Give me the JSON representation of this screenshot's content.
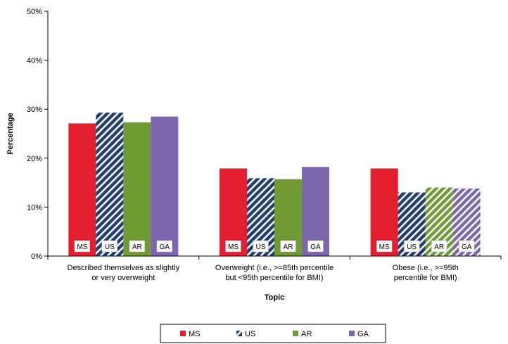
{
  "chart_data": {
    "type": "bar",
    "xlabel": "Topic",
    "ylabel": "Percentage",
    "ylim": [
      0,
      50
    ],
    "yticks": [
      "0%",
      "10%",
      "20%",
      "30%",
      "40%",
      "50%"
    ],
    "categories": [
      [
        "Described themselves as slightly",
        "or very overweight"
      ],
      [
        "Overweight (i.e., >=85th percentile",
        "but <95th percentile for BMI)"
      ],
      [
        "Obese (i.e., >=95th",
        "percentile for BMI)"
      ]
    ],
    "series": [
      {
        "name": "MS",
        "label": "MS",
        "color": "#e31e2e",
        "pattern": "solid",
        "values": [
          27.1,
          17.9,
          17.9
        ]
      },
      {
        "name": "US",
        "label": "US",
        "color": "#1f3d6e",
        "pattern": "striped",
        "values": [
          29.3,
          15.9,
          13.0
        ]
      },
      {
        "name": "AR",
        "label": "AR",
        "color": "#6f9a34",
        "pattern": [
          "solid",
          "solid",
          "striped"
        ],
        "values": [
          27.3,
          15.7,
          14.0
        ]
      },
      {
        "name": "GA",
        "label": "GA",
        "color": "#7c67ae",
        "pattern": [
          "solid",
          "solid",
          "striped"
        ],
        "values": [
          28.5,
          18.2,
          13.8
        ]
      }
    ],
    "grid": false,
    "legend_position": "bottom"
  }
}
